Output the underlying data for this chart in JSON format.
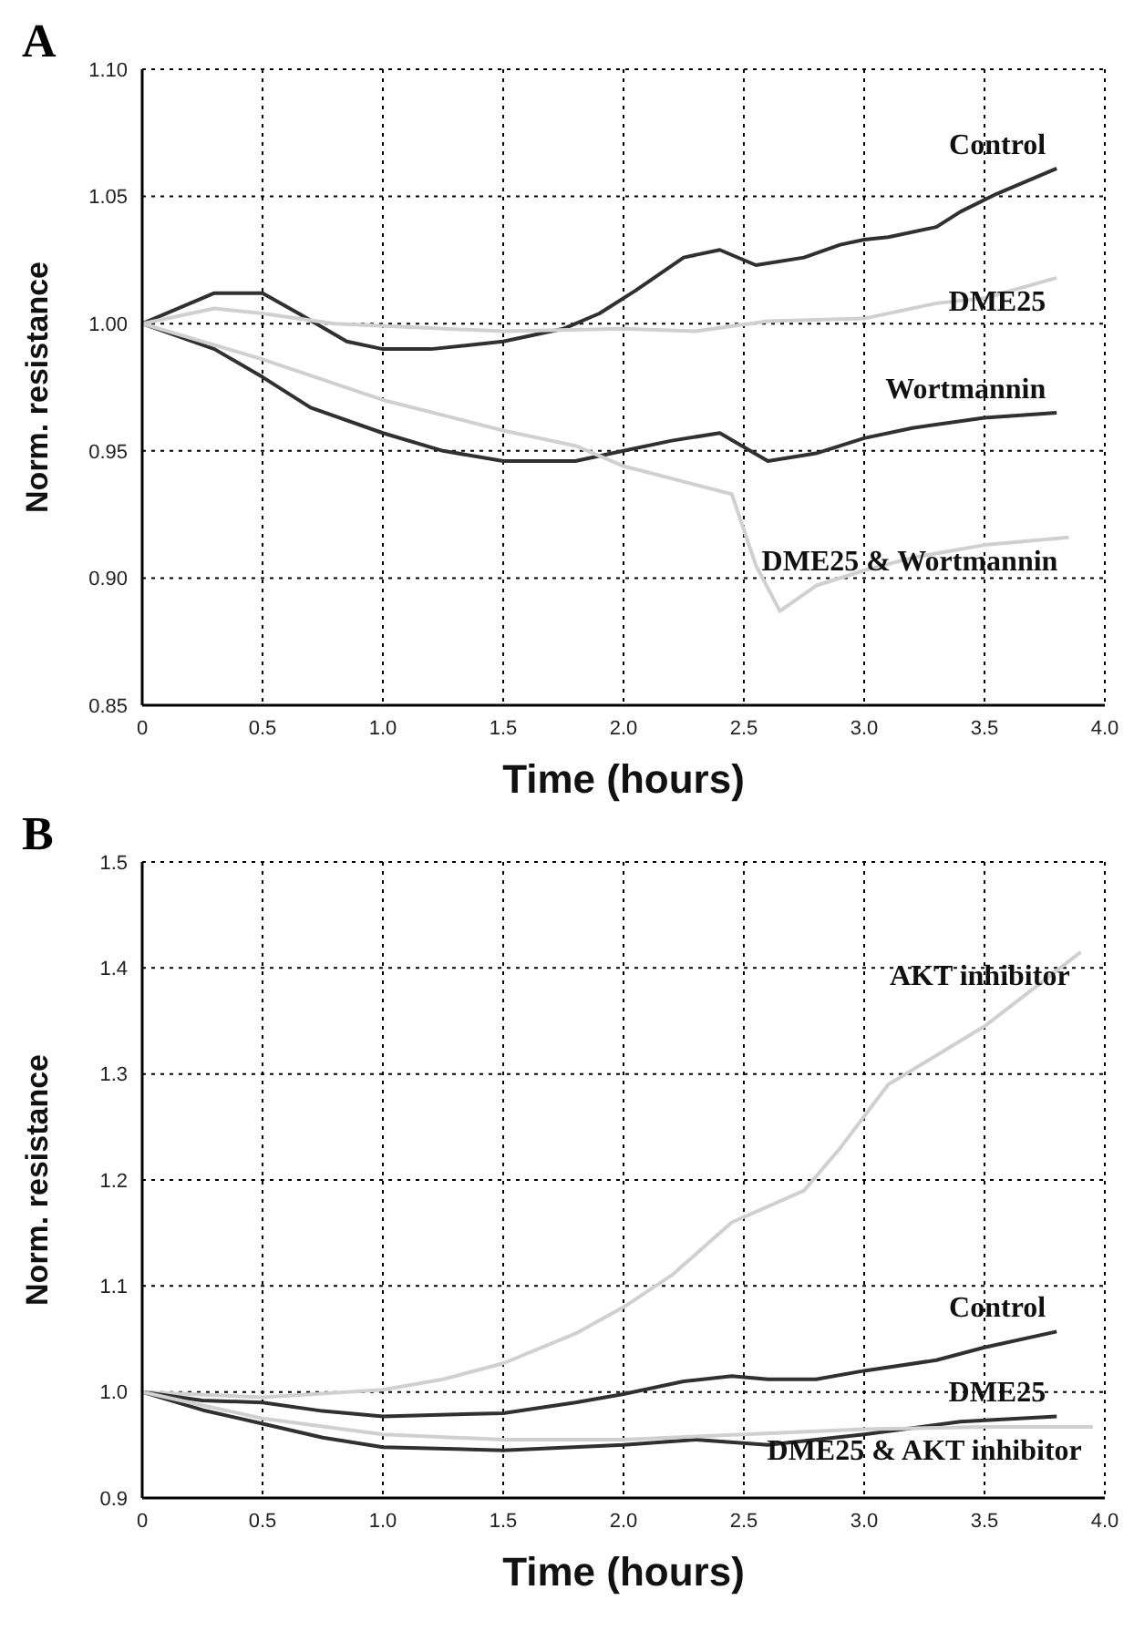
{
  "chart_data": [
    {
      "type": "line",
      "title": "A",
      "xlabel": "Time (hours)",
      "ylabel": "Norm.  resistance",
      "xlim": [
        0,
        4
      ],
      "ylim": [
        0.85,
        1.1
      ],
      "xticks": [
        0,
        0.5,
        {
          "value": 1,
          "label": "1.0"
        },
        1.5,
        {
          "value": 2,
          "label": "2.0"
        },
        2.5,
        {
          "value": 3,
          "label": "3.0"
        },
        3.5,
        {
          "value": 4,
          "label": "4.0"
        }
      ],
      "yticks": [
        {
          "value": 0.85,
          "label": "0.85"
        },
        {
          "value": 0.9,
          "label": "0.90"
        },
        {
          "value": 0.95,
          "label": "0.95"
        },
        {
          "value": 1,
          "label": "1.00"
        },
        {
          "value": 1.05,
          "label": "1.05"
        },
        {
          "value": 1.1,
          "label": "1.10"
        }
      ],
      "grid": true,
      "marker": "none",
      "line_style": "solid",
      "series": [
        {
          "name": "Control",
          "color": "#303030",
          "x": [
            0,
            0.3,
            0.5,
            0.65,
            0.85,
            1.0,
            1.2,
            1.5,
            1.75,
            1.9,
            2.05,
            2.25,
            2.4,
            2.55,
            2.75,
            2.9,
            3.0,
            3.1,
            3.3,
            3.4,
            3.55,
            3.8
          ],
          "values": [
            1.0,
            1.012,
            1.012,
            1.004,
            0.993,
            0.99,
            0.99,
            0.993,
            0.998,
            1.004,
            1.013,
            1.026,
            1.029,
            1.023,
            1.026,
            1.031,
            1.033,
            1.034,
            1.038,
            1.044,
            1.051,
            1.061
          ]
        },
        {
          "name": "DME25",
          "color": "#d0d0d0",
          "x": [
            0,
            0.3,
            0.5,
            0.8,
            1.5,
            2.0,
            2.3,
            2.6,
            3.0,
            3.3,
            3.5,
            3.8
          ],
          "values": [
            1.0,
            1.006,
            1.004,
            1.0,
            0.997,
            0.998,
            0.997,
            1.001,
            1.002,
            1.008,
            1.01,
            1.018
          ]
        },
        {
          "name": "Wortmannin",
          "color": "#303030",
          "x": [
            0,
            0.3,
            0.5,
            0.7,
            1.0,
            1.25,
            1.5,
            1.8,
            2.0,
            2.2,
            2.4,
            2.6,
            2.8,
            3.0,
            3.2,
            3.5,
            3.8
          ],
          "values": [
            1.0,
            0.99,
            0.979,
            0.967,
            0.957,
            0.95,
            0.946,
            0.946,
            0.95,
            0.954,
            0.957,
            0.946,
            0.949,
            0.955,
            0.959,
            0.963,
            0.965
          ]
        },
        {
          "name": "DME25 & Wortmannin",
          "color": "#d0d0d0",
          "x": [
            0,
            0.5,
            1.0,
            1.5,
            1.8,
            2.0,
            2.45,
            2.55,
            2.65,
            2.8,
            3.0,
            3.2,
            3.5,
            3.85
          ],
          "values": [
            1.0,
            0.986,
            0.97,
            0.958,
            0.952,
            0.944,
            0.933,
            0.905,
            0.887,
            0.897,
            0.903,
            0.908,
            0.913,
            0.916
          ]
        }
      ]
    },
    {
      "type": "line",
      "title": "B",
      "xlabel": "Time (hours)",
      "ylabel": "Norm.  resistance",
      "xlim": [
        0,
        4
      ],
      "ylim": [
        0.9,
        1.5
      ],
      "xticks": [
        0,
        0.5,
        {
          "value": 1,
          "label": "1.0"
        },
        1.5,
        {
          "value": 2,
          "label": "2.0"
        },
        2.5,
        {
          "value": 3,
          "label": "3.0"
        },
        3.5,
        {
          "value": 4,
          "label": "4.0"
        }
      ],
      "yticks": [
        0.9,
        {
          "value": 1,
          "label": "1.0"
        },
        1.1,
        1.2,
        1.3,
        1.4,
        1.5
      ],
      "grid": true,
      "marker": "none",
      "line_style": "solid",
      "series": [
        {
          "name": "AKT inhibitor",
          "color": "#d0d0d0",
          "x": [
            0,
            0.5,
            1.0,
            1.25,
            1.5,
            1.8,
            2.0,
            2.2,
            2.45,
            2.6,
            2.75,
            2.9,
            3.1,
            3.5,
            3.9
          ],
          "values": [
            1.0,
            0.995,
            1.002,
            1.012,
            1.027,
            1.055,
            1.08,
            1.11,
            1.16,
            1.175,
            1.19,
            1.23,
            1.29,
            1.345,
            1.415
          ]
        },
        {
          "name": "Control",
          "color": "#303030",
          "x": [
            0,
            0.25,
            0.5,
            0.75,
            1.0,
            1.5,
            1.8,
            2.0,
            2.25,
            2.45,
            2.6,
            2.8,
            3.0,
            3.3,
            3.5,
            3.8
          ],
          "values": [
            1.0,
            0.992,
            0.99,
            0.982,
            0.977,
            0.98,
            0.99,
            0.998,
            1.01,
            1.015,
            1.012,
            1.012,
            1.02,
            1.03,
            1.042,
            1.057
          ]
        },
        {
          "name": "DME25",
          "color": "#303030",
          "x": [
            0,
            0.25,
            0.5,
            0.75,
            1.0,
            1.5,
            2.0,
            2.3,
            2.6,
            3.0,
            3.4,
            3.8
          ],
          "values": [
            1.0,
            0.983,
            0.97,
            0.957,
            0.948,
            0.945,
            0.95,
            0.955,
            0.95,
            0.96,
            0.972,
            0.977
          ]
        },
        {
          "name": "DME25 & AKT inhibitor",
          "color": "#d0d0d0",
          "x": [
            0,
            0.5,
            1.0,
            1.5,
            2.0,
            2.5,
            3.0,
            3.5,
            3.95
          ],
          "values": [
            1.0,
            0.975,
            0.96,
            0.955,
            0.955,
            0.96,
            0.965,
            0.967,
            0.967
          ]
        }
      ]
    }
  ]
}
